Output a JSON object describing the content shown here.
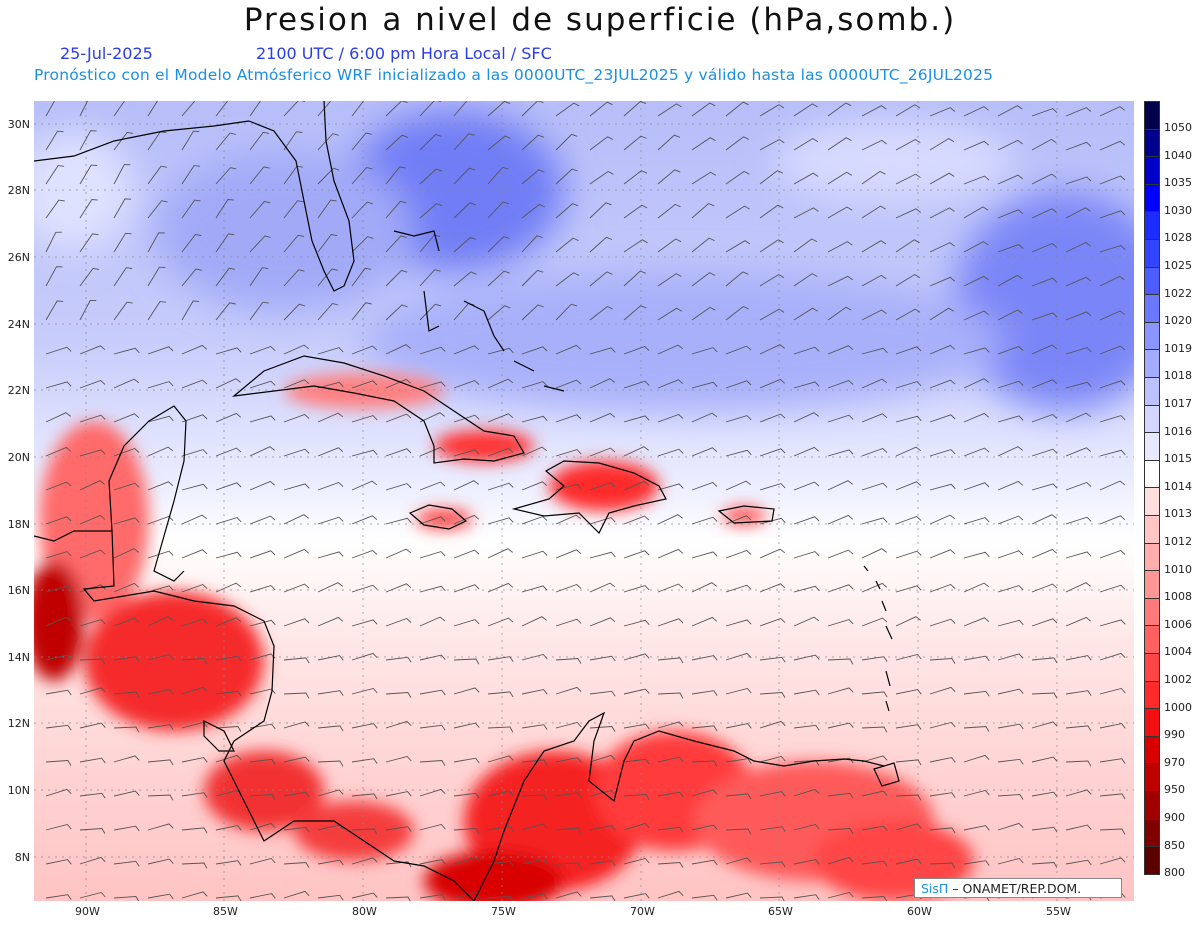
{
  "title": "Presion a nivel de superficie (hPa,somb.)",
  "subtitle_date": "25-Jul-2025",
  "subtitle_time": "2100 UTC / 6:00 pm Hora Local / SFC",
  "subtitle_model": "Pronóstico con el Modelo Atmósferico WRF inicializado a las 0000UTC_23JUL2025 y válido hasta las  0000UTC_26JUL2025",
  "credit_brand": "SisΠ",
  "credit_org": "– ONAMET/REP.DOM.",
  "lat_labels": [
    "30N",
    "28N",
    "26N",
    "24N",
    "22N",
    "20N",
    "18N",
    "16N",
    "14N",
    "12N",
    "10N",
    "8N"
  ],
  "lon_labels": [
    "90W",
    "85W",
    "80W",
    "75W",
    "70W",
    "65W",
    "60W",
    "55W"
  ],
  "colorbar": {
    "levels": [
      "1050",
      "1040",
      "1035",
      "1030",
      "1028",
      "1025",
      "1022",
      "1020",
      "1019",
      "1018",
      "1017",
      "1016",
      "1015",
      "1014",
      "1013",
      "1012",
      "1010",
      "1008",
      "1006",
      "1004",
      "1002",
      "1000",
      "990",
      "970",
      "950",
      "900",
      "850",
      "800"
    ],
    "colors": [
      "#00004d",
      "#00008c",
      "#0000c8",
      "#0000ff",
      "#1c2cff",
      "#3344ff",
      "#4d5cff",
      "#6a78ff",
      "#8a95ff",
      "#a3acff",
      "#bcc2ff",
      "#d3d7ff",
      "#e6e8ff",
      "#ffffff",
      "#ffdede",
      "#ffc6c6",
      "#ffadad",
      "#ff9595",
      "#ff7b7b",
      "#ff6161",
      "#ff4545",
      "#ff2a2a",
      "#f21010",
      "#d90000",
      "#c00000",
      "#a00000",
      "#800000",
      "#5a0000"
    ]
  },
  "legend_colors": {
    "high": "#6a78ff",
    "low": "#d90000",
    "land_outline": "#000000",
    "wind_barb": "#555555"
  }
}
